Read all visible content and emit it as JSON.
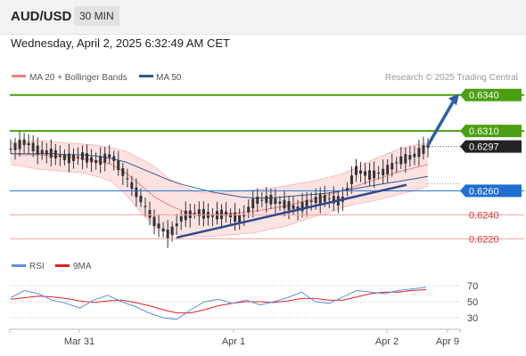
{
  "header": {
    "symbol": "AUD/USD",
    "interval": "30 MIN",
    "datetime": "Wednesday, April 2, 2025 6:32:49 AM CET"
  },
  "legend": {
    "ma20": "MA 20 + Bollinger Bands",
    "ma50": "MA 50",
    "credit": "Research © 2025 Trading Central"
  },
  "colors": {
    "ma20": "#f08080",
    "ma50": "#2e5c8a",
    "band_fill": "#fde2e2",
    "candle": "#333333",
    "green_level": "#4aa012",
    "blue_level": "#1e6fd0",
    "red_level": "#f08080",
    "trendline": "#2e4a8f",
    "rsi": "#5b8ee6",
    "rsi_ma": "#e02020"
  },
  "chart_data": [
    {
      "type": "line",
      "title": "",
      "series_names": [
        "MA 20 + Bollinger Bands",
        "MA 50"
      ],
      "x_ticks": [
        "Mar 31",
        "Apr 1",
        "Apr 2",
        "Apr 9"
      ],
      "ylim": [
        0.6215,
        0.6345
      ],
      "ma20": [
        0.6291,
        0.629,
        0.629,
        0.6289,
        0.6288,
        0.6287,
        0.6285,
        0.6282,
        0.6275,
        0.6265,
        0.6255,
        0.6248,
        0.6243,
        0.624,
        0.624,
        0.6241,
        0.6242,
        0.6243,
        0.6245,
        0.6247,
        0.625,
        0.6253,
        0.6256,
        0.626,
        0.6264,
        0.6268,
        0.6272,
        0.6276,
        0.6279,
        0.6282
      ],
      "ma50": [
        0.6291,
        0.6291,
        0.6291,
        0.6291,
        0.629,
        0.629,
        0.6289,
        0.6287,
        0.6284,
        0.6279,
        0.6274,
        0.6269,
        0.6265,
        0.6262,
        0.6259,
        0.6257,
        0.6255,
        0.6254,
        0.6254,
        0.6255,
        0.6256,
        0.6257,
        0.6258,
        0.626,
        0.6262,
        0.6264,
        0.6266,
        0.6268,
        0.627,
        0.6272
      ],
      "band_upper": [
        0.63,
        0.6301,
        0.6302,
        0.6301,
        0.63,
        0.6299,
        0.6298,
        0.6296,
        0.6293,
        0.6287,
        0.628,
        0.627,
        0.6263,
        0.6259,
        0.6258,
        0.6259,
        0.626,
        0.6261,
        0.6262,
        0.6264,
        0.6266,
        0.6268,
        0.6271,
        0.6274,
        0.6279,
        0.6285,
        0.629,
        0.6295,
        0.6298,
        0.63
      ],
      "band_lower": [
        0.6282,
        0.628,
        0.6278,
        0.6277,
        0.6276,
        0.6275,
        0.6272,
        0.6268,
        0.6257,
        0.6243,
        0.623,
        0.6225,
        0.6223,
        0.6222,
        0.6222,
        0.6223,
        0.6224,
        0.6225,
        0.6228,
        0.623,
        0.6234,
        0.6238,
        0.6241,
        0.6246,
        0.6249,
        0.6251,
        0.6254,
        0.6257,
        0.626,
        0.6264
      ],
      "price": [
        0.6295,
        0.6301,
        0.6293,
        0.6291,
        0.6287,
        0.6289,
        0.6284,
        0.629,
        0.6272,
        0.6254,
        0.6234,
        0.6223,
        0.6239,
        0.6242,
        0.6239,
        0.6241,
        0.6236,
        0.6252,
        0.6253,
        0.6249,
        0.6245,
        0.6252,
        0.6254,
        0.6251,
        0.6277,
        0.6273,
        0.6276,
        0.6285,
        0.6289,
        0.6297
      ],
      "levels": [
        {
          "label": "0.6340",
          "value": 0.634,
          "color": "#4aa012"
        },
        {
          "label": "0.6310",
          "value": 0.631,
          "color": "#4aa012"
        },
        {
          "label": "0.6297",
          "value": 0.6297,
          "color": "#222222"
        },
        {
          "label": "0.6260",
          "value": 0.626,
          "color": "#1e6fd0"
        },
        {
          "label": "0.6240",
          "value": 0.624,
          "color": "#e03030"
        },
        {
          "label": "0.6220",
          "value": 0.622,
          "color": "#e03030"
        }
      ]
    },
    {
      "type": "line",
      "title": "",
      "series_names": [
        "RSI",
        "9MA"
      ],
      "ylim": [
        20,
        80
      ],
      "y_ticks": [
        "70",
        "50",
        "30"
      ],
      "rsi": [
        55,
        64,
        60,
        52,
        48,
        42,
        52,
        58,
        50,
        44,
        36,
        30,
        28,
        40,
        50,
        53,
        48,
        52,
        46,
        50,
        55,
        62,
        50,
        48,
        56,
        64,
        62,
        60,
        64,
        66,
        68
      ],
      "rsi_ma": [
        53,
        55,
        57,
        56,
        54,
        51,
        49,
        51,
        52,
        49,
        45,
        40,
        36,
        36,
        40,
        45,
        48,
        50,
        50,
        49,
        51,
        54,
        54,
        52,
        52,
        56,
        60,
        62,
        62,
        64,
        65
      ]
    }
  ]
}
